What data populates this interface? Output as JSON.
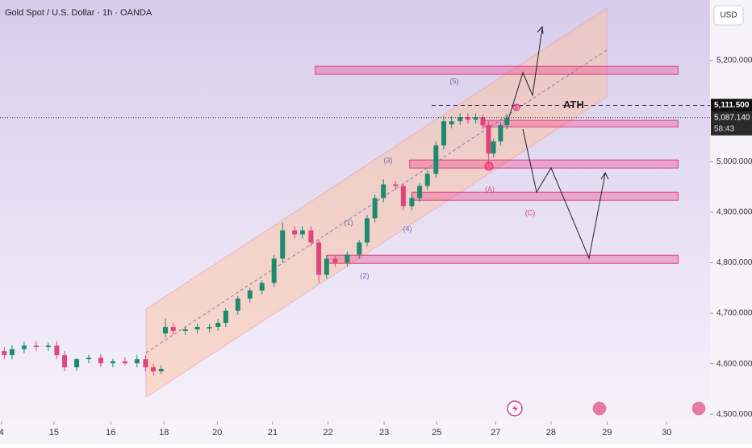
{
  "chart_data": {
    "type": "candlestick",
    "title": "Gold Spot / U.S. Dollar · 1h · OANDA",
    "currency": "USD",
    "up_color": "#1e8a6e",
    "down_color": "#e0457b",
    "x": [
      0.6,
      1.7,
      3.4,
      5.1,
      6.8,
      8.0,
      9.1,
      10.8,
      12.5,
      14.2,
      15.9,
      17.6,
      19.3,
      20.5,
      21.6,
      22.7,
      23.3,
      24.4,
      26.1,
      27.8,
      29.5,
      30.7,
      31.8,
      33.5,
      35.2,
      36.9,
      38.6,
      39.8,
      41.5,
      42.6,
      43.8,
      44.9,
      46.0,
      47.2,
      48.9,
      50.6,
      51.7,
      52.8,
      54.0,
      55.7,
      56.8,
      58.0,
      59.1,
      60.2,
      61.4,
      62.5,
      63.6,
      64.8,
      65.9,
      67.0,
      68.0,
      68.8,
      69.5,
      70.5,
      71.4
    ],
    "open": [
      4625,
      4617,
      4629,
      4636,
      4633,
      4636,
      4617,
      4593,
      4609,
      4612,
      4601,
      4605,
      4601,
      4609,
      4593,
      4585,
      4660,
      4673,
      4665,
      4668,
      4670,
      4673,
      4681,
      4705,
      4729,
      4745,
      4760,
      4808,
      4864,
      4856,
      4864,
      4840,
      4776,
      4808,
      4800,
      4816,
      4840,
      4888,
      4928,
      4955,
      4952,
      4912,
      4928,
      4952,
      4976,
      5032,
      5074,
      5080,
      5088,
      5083,
      5088,
      5072,
      5016,
      5040,
      5072
    ],
    "high": [
      4633,
      4637,
      4644,
      4645,
      4642,
      4644,
      4625,
      4612,
      4618,
      4620,
      4610,
      4613,
      4617,
      4617,
      4600,
      4597,
      4690,
      4681,
      4673,
      4680,
      4679,
      4689,
      4710,
      4735,
      4750,
      4765,
      4815,
      4880,
      4872,
      4872,
      4872,
      4846,
      4815,
      4815,
      4822,
      4845,
      4895,
      4935,
      4965,
      4962,
      4958,
      4935,
      4958,
      4982,
      5040,
      5090,
      5090,
      5096,
      5096,
      5096,
      5094,
      5080,
      5045,
      5078,
      5095
    ],
    "low": [
      4609,
      4609,
      4621,
      4625,
      4625,
      4609,
      4585,
      4586,
      4601,
      4593,
      4593,
      4597,
      4593,
      4585,
      4577,
      4580,
      4652,
      4657,
      4657,
      4660,
      4662,
      4665,
      4673,
      4697,
      4721,
      4737,
      4752,
      4800,
      4848,
      4848,
      4832,
      4760,
      4768,
      4792,
      4792,
      4808,
      4832,
      4880,
      4920,
      4944,
      4904,
      4904,
      4920,
      4944,
      4968,
      5024,
      5066,
      5072,
      5075,
      5075,
      5064,
      4992,
      5008,
      5032,
      5064
    ],
    "close": [
      4617,
      4629,
      4636,
      4633,
      4636,
      4617,
      4593,
      4609,
      4612,
      4601,
      4605,
      4601,
      4609,
      4593,
      4585,
      4590,
      4673,
      4665,
      4668,
      4673,
      4673,
      4681,
      4705,
      4729,
      4745,
      4760,
      4808,
      4864,
      4856,
      4864,
      4840,
      4776,
      4808,
      4800,
      4816,
      4840,
      4888,
      4928,
      4955,
      4952,
      4912,
      4928,
      4952,
      4976,
      5032,
      5080,
      5080,
      5088,
      5083,
      5088,
      5072,
      5016,
      5040,
      5072,
      5087
    ],
    "xlim": [
      0,
      100
    ],
    "xticks": [
      {
        "value": 0.2,
        "label": "4"
      },
      {
        "value": 7.6,
        "label": "15"
      },
      {
        "value": 15.6,
        "label": "16"
      },
      {
        "value": 23.1,
        "label": "18"
      },
      {
        "value": 30.6,
        "label": "20"
      },
      {
        "value": 38.4,
        "label": "21"
      },
      {
        "value": 46.2,
        "label": "22"
      },
      {
        "value": 54.1,
        "label": "23"
      },
      {
        "value": 61.5,
        "label": "25"
      },
      {
        "value": 69.8,
        "label": "27"
      },
      {
        "value": 77.6,
        "label": "28"
      },
      {
        "value": 85.5,
        "label": "29"
      },
      {
        "value": 93.9,
        "label": "30"
      }
    ],
    "ylim": [
      4486,
      5320
    ],
    "yticks": [
      {
        "value": 4500,
        "label": "4,500.000"
      },
      {
        "value": 4600,
        "label": "4,600.000"
      },
      {
        "value": 4700,
        "label": "4,700.000"
      },
      {
        "value": 4800,
        "label": "4,800.000"
      },
      {
        "value": 4900,
        "label": "4,900.000"
      },
      {
        "value": 5000,
        "label": "5,000.000"
      },
      {
        "value": 5200,
        "label": "5,200.000"
      }
    ],
    "ath": {
      "value": 5111.5,
      "label": "5,111.500",
      "text": "ATH"
    },
    "last_price": {
      "value": 5087.14,
      "label": "5,087.140",
      "countdown": "58:43"
    },
    "zones": [
      {
        "x0": 44.4,
        "x1": 95.5,
        "top": 5188.8,
        "bottom": 5172.8
      },
      {
        "x0": 68.0,
        "x1": 95.5,
        "top": 5081.7,
        "bottom": 5068.9
      },
      {
        "x0": 57.7,
        "x1": 95.5,
        "top": 5003.4,
        "bottom": 4987.4
      },
      {
        "x0": 58.0,
        "x1": 95.5,
        "top": 4939.5,
        "bottom": 4923.5
      },
      {
        "x0": 46.0,
        "x1": 95.5,
        "top": 4814.8,
        "bottom": 4798.8
      }
    ],
    "wave_labels": [
      "(1)",
      "(2)",
      "(3)",
      "(4)",
      "(5)",
      "(A)",
      "(B)",
      "(C)"
    ]
  }
}
